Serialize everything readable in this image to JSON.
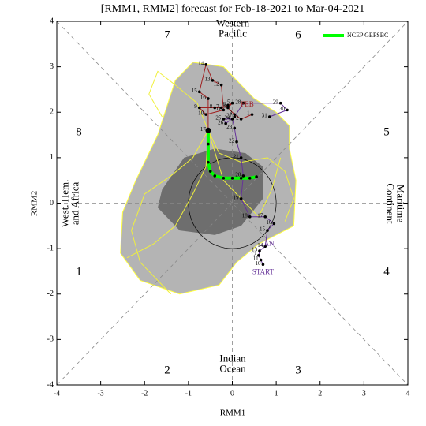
{
  "chart_data": {
    "type": "rmm",
    "title": "[RMM1, RMM2] forecast for Feb-18-2021 to Mar-04-2021",
    "x_label": "RMM1",
    "y_label": "RMM2",
    "xlim": [
      -4,
      4
    ],
    "ylim": [
      -4,
      4
    ],
    "xticks": [
      -4,
      -3,
      -2,
      -1,
      0,
      1,
      2,
      3,
      4
    ],
    "yticks": [
      -4,
      -3,
      -2,
      -1,
      0,
      1,
      2,
      3,
      4
    ],
    "phases": [
      1,
      2,
      3,
      4,
      5,
      6,
      7,
      8
    ],
    "regions": [
      [
        "Western",
        "Pacific"
      ],
      [
        "Indian",
        "Ocean"
      ],
      [
        "West. Hem.",
        "and Africa"
      ],
      [
        "Maritime",
        "Continent"
      ]
    ],
    "legend": "upper right",
    "shading": [
      {
        "color": "#b4b4b4",
        "x": [
          -2.55,
          -2.5,
          -2.2,
          -1.7,
          -1.3,
          -0.9,
          -0.2,
          0.5,
          1.0,
          1.3,
          1.3,
          1.45,
          1.4,
          0.6,
          0.1,
          -0.3,
          -1.2,
          -2.1
        ],
        "y": [
          -1.1,
          -0.2,
          0.5,
          1.5,
          2.7,
          3.1,
          3.0,
          2.3,
          2.0,
          1.7,
          1.2,
          0.5,
          -0.5,
          -0.9,
          -1.3,
          -1.8,
          -2.0,
          -1.7
        ]
      },
      {
        "color": "#6e6e6e",
        "x": [
          -1.7,
          -1.6,
          -1.1,
          -0.4,
          0.3,
          0.7,
          0.7,
          0.2,
          -0.4,
          -1.2,
          -1.5
        ],
        "y": [
          -0.1,
          0.3,
          1.0,
          1.2,
          1.1,
          0.8,
          0.1,
          -0.5,
          -0.7,
          -0.6,
          -0.3
        ]
      }
    ],
    "members": [
      {
        "color": "#f0f03c",
        "x": [
          -0.55,
          -0.9,
          -1.4,
          -2.0,
          -2.3,
          -2.1,
          -1.4
        ],
        "y": [
          1.6,
          1.0,
          0.6,
          0.2,
          -0.6,
          -1.3,
          -2.0
        ]
      },
      {
        "color": "#f0f03c",
        "x": [
          -0.55,
          -0.3,
          0.2,
          0.8,
          1.2,
          1.4,
          1.2
        ],
        "y": [
          1.6,
          1.1,
          0.9,
          1.0,
          0.7,
          0.1,
          -0.4
        ]
      },
      {
        "color": "#f0f03c",
        "x": [
          -0.55,
          -0.8,
          -1.3,
          -1.7,
          -1.9,
          -1.6
        ],
        "y": [
          1.6,
          2.2,
          2.6,
          2.9,
          2.4,
          1.9
        ]
      },
      {
        "color": "#f0f03c",
        "x": [
          -0.55,
          -0.6,
          -0.9,
          -1.3,
          -1.8,
          -2.4
        ],
        "y": [
          1.6,
          0.8,
          0.2,
          -0.5,
          -0.9,
          -1.2
        ]
      },
      {
        "color": "#f0f03c",
        "x": [
          -0.55,
          -0.2,
          0.3,
          0.6,
          0.9,
          1.1
        ],
        "y": [
          1.6,
          0.5,
          0.0,
          -0.3,
          0.3,
          1.0
        ]
      }
    ],
    "series": [
      {
        "name": "NCEP GEPSBC",
        "color": "#00ff00",
        "x": [
          -0.55,
          -0.55,
          -0.55,
          -0.5,
          -0.4,
          -0.2,
          0.0,
          0.2,
          0.4,
          0.55
        ],
        "y": [
          1.6,
          1.3,
          0.9,
          0.7,
          0.6,
          0.55,
          0.55,
          0.55,
          0.55,
          0.58
        ]
      }
    ],
    "tracks": [
      {
        "month": "JAN",
        "start": "START",
        "color": "#663399",
        "labels": [
          10,
          11,
          12,
          13,
          14,
          15,
          16,
          17,
          18,
          19,
          20,
          21,
          22,
          23,
          24,
          25,
          26,
          27,
          28,
          29,
          30,
          31
        ],
        "x": [
          0.7,
          0.65,
          0.6,
          0.62,
          0.75,
          0.8,
          0.95,
          0.75,
          0.4,
          0.2,
          0.25,
          0.2,
          0.1,
          0.05,
          0.0,
          -0.2,
          -0.15,
          0.05,
          0.25,
          1.1,
          1.25,
          0.85
        ],
        "y": [
          -1.35,
          -1.25,
          -1.15,
          -1.05,
          -0.95,
          -0.6,
          -0.45,
          -0.3,
          -0.3,
          0.1,
          0.6,
          1.0,
          1.35,
          1.65,
          1.85,
          1.85,
          1.75,
          1.9,
          2.2,
          2.2,
          2.05,
          1.9
        ]
      },
      {
        "month": "FEB",
        "color": "#a02020",
        "labels": [
          1,
          2,
          3,
          4,
          5,
          6,
          7,
          8,
          9,
          10,
          11,
          12,
          13,
          14,
          15,
          16,
          17
        ],
        "x": [
          0.45,
          0.2,
          0.05,
          -0.1,
          0.0,
          -0.1,
          -0.25,
          -0.4,
          -0.75,
          -0.6,
          -0.2,
          -0.25,
          -0.45,
          -0.6,
          -0.75,
          -0.55,
          -0.55
        ],
        "y": [
          1.95,
          1.85,
          1.95,
          2.1,
          2.2,
          2.15,
          2.1,
          2.1,
          2.1,
          1.95,
          2.05,
          2.6,
          2.7,
          3.05,
          2.45,
          2.3,
          1.6
        ]
      }
    ]
  }
}
